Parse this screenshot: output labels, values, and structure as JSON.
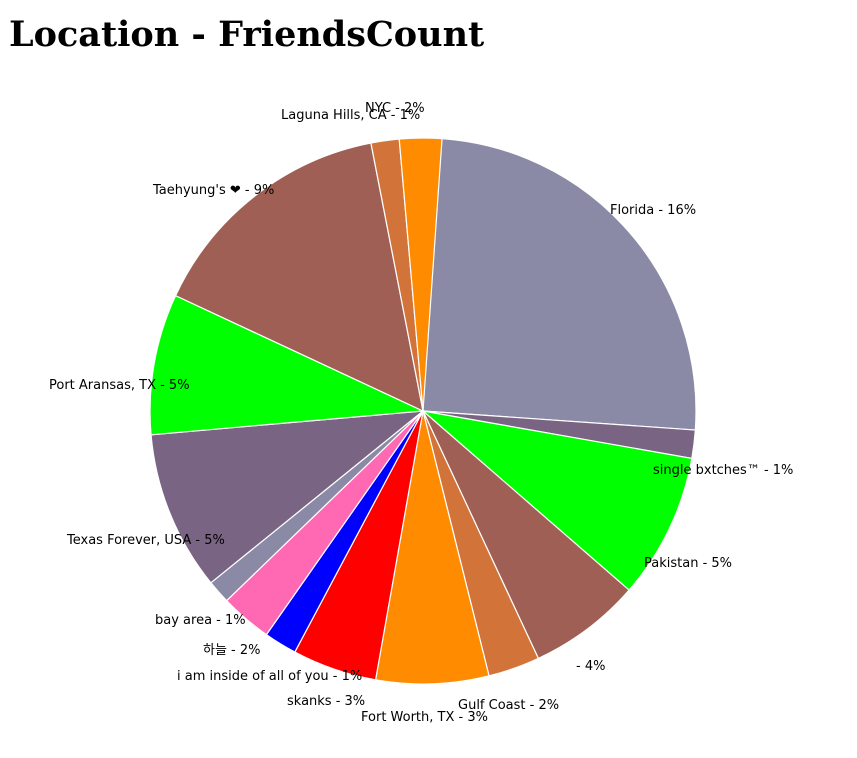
{
  "chart_data": {
    "type": "pie",
    "title": "Location - FriendsCount",
    "slices": [
      {
        "label": "Florida - 16%",
        "value": 16,
        "color": "#8a8aa6"
      },
      {
        "label": "single bxtches™ - 1%",
        "value": 1,
        "color": "#7a6483"
      },
      {
        "label": "Pakistan - 5%",
        "value": 5,
        "color": "#00ff00"
      },
      {
        "label": " - 4%",
        "value": 4,
        "color": "#a05f55"
      },
      {
        "label": "Gulf Coast - 2%",
        "value": 2,
        "color": "#d2743a"
      },
      {
        "label": "Fort Worth, TX - 3%",
        "value": 3,
        "color": "#ff8c00"
      },
      {
        "label": "skanks - 3%",
        "value": 3,
        "color": "#ff0000"
      },
      {
        "label": "i am inside of all of you - 1%",
        "value": 1,
        "color": "#0000ff"
      },
      {
        "label": "하늘 - 2%",
        "value": 2,
        "color": "#ff69b4"
      },
      {
        "label": "bay area - 1%",
        "value": 1,
        "color": "#8a8aa6"
      },
      {
        "label": "Texas Forever, USA - 5%",
        "value": 5,
        "color": "#7a6483"
      },
      {
        "label": "Port Aransas, TX - 5%",
        "value": 5,
        "color": "#00ff00"
      },
      {
        "label": "Taehyung's ❤ - 9%",
        "value": 9,
        "color": "#a05f55"
      },
      {
        "label": "Laguna Hills, CA - 1%",
        "value": 1,
        "color": "#d2743a"
      },
      {
        "label": "NYC - 2%",
        "value": 2,
        "color": "#ff8c00"
      }
    ],
    "start_angle": "12 o'clock",
    "direction": "clockwise",
    "legend": "none"
  }
}
